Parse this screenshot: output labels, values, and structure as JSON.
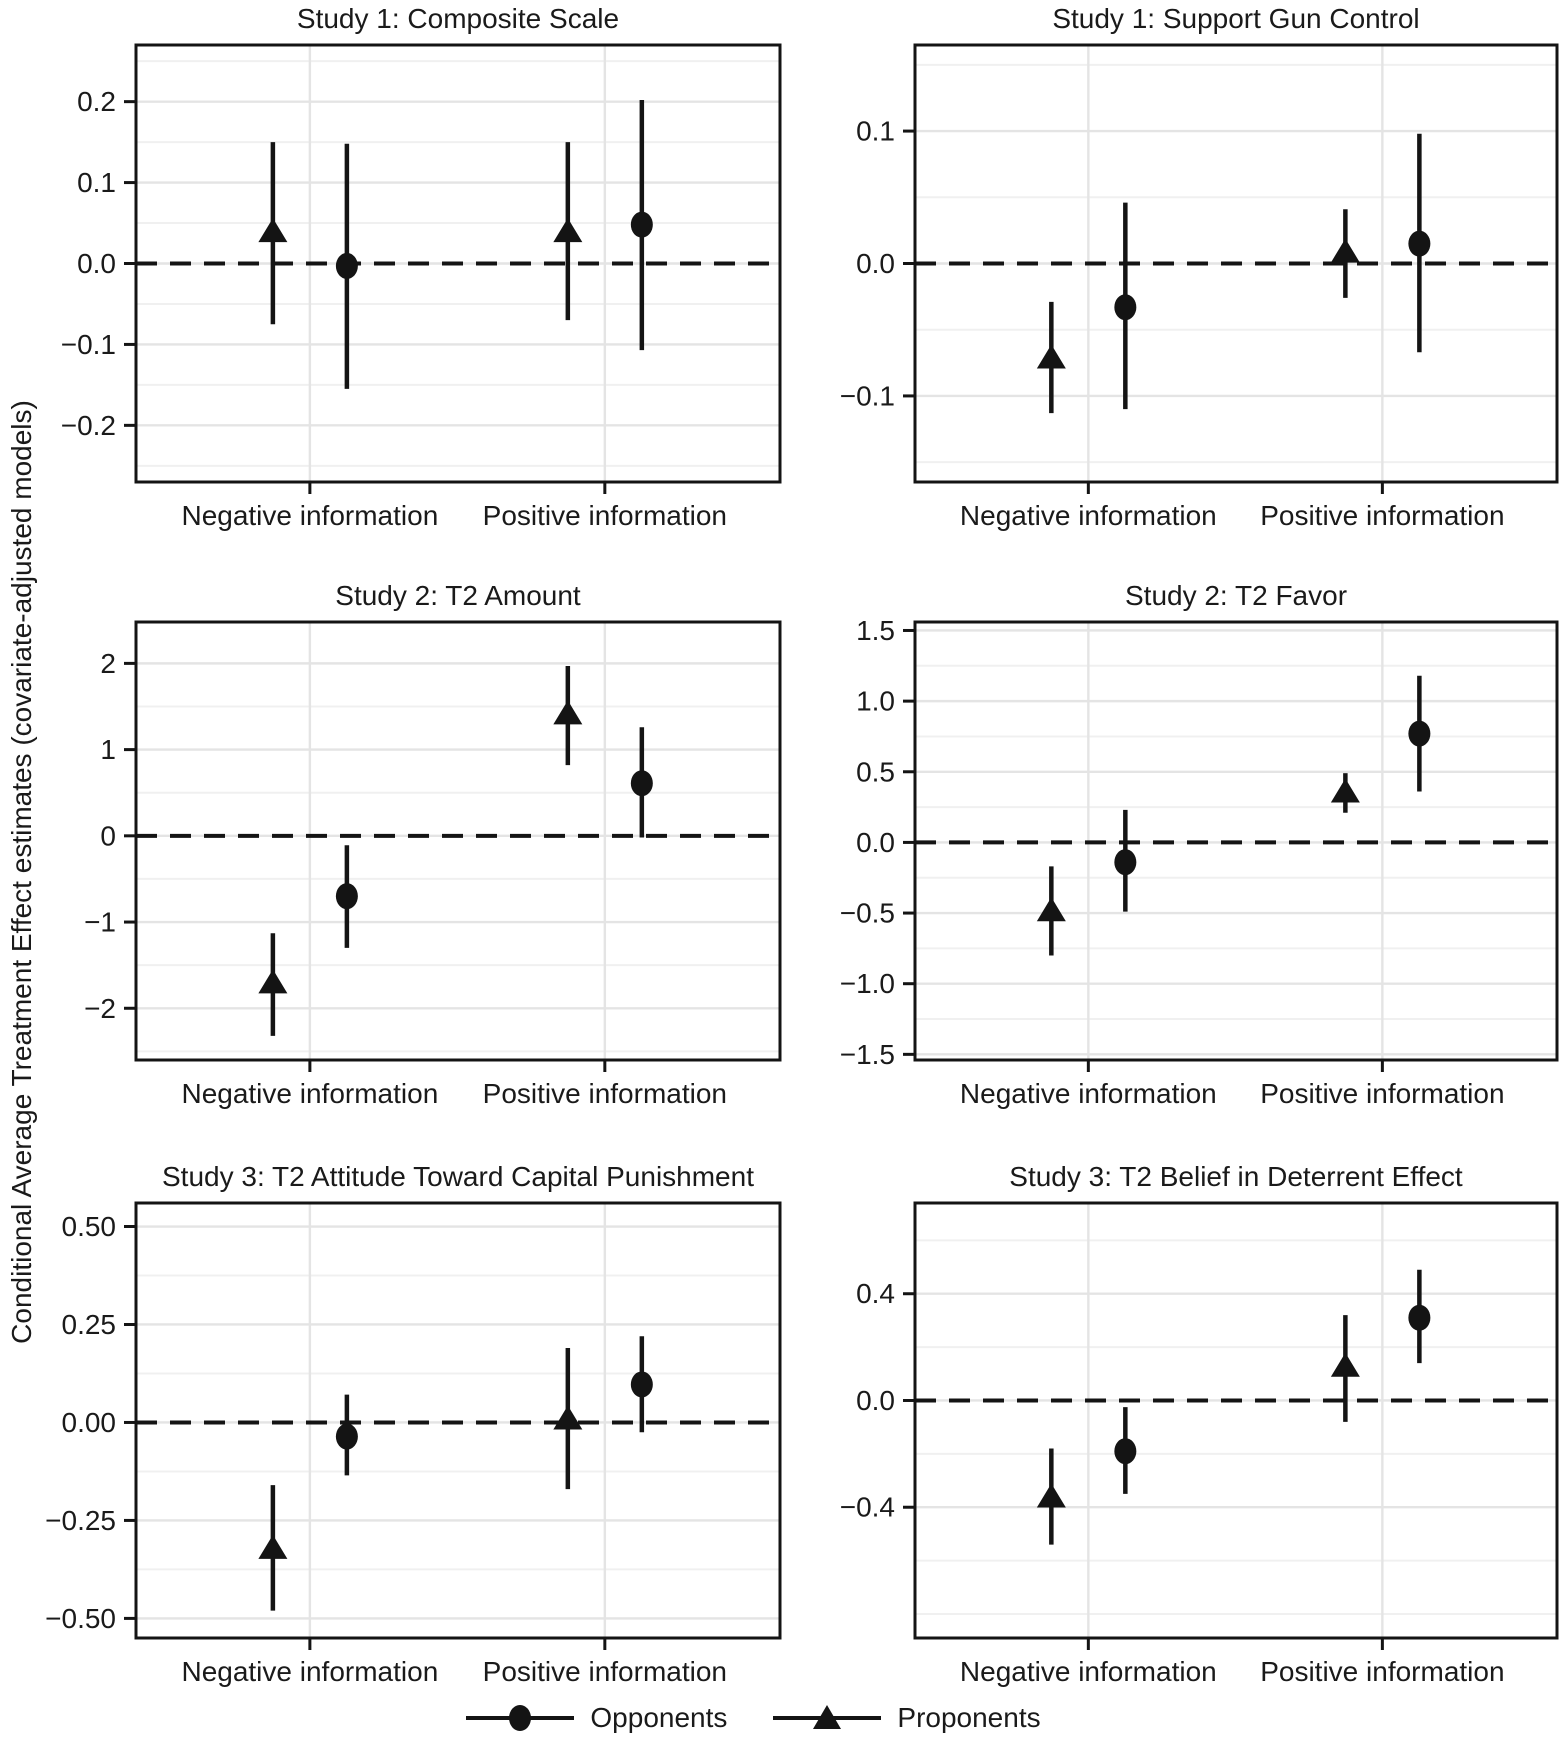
{
  "figure": {
    "y_axis_label": "Conditional Average Treatment Effect estimates (covariate-adjusted models)"
  },
  "colors": {
    "marker": "#141414",
    "border": "#141414",
    "zero_line": "#141414",
    "grid_major": "#e4e4e4",
    "grid_minor": "#f0f0f0",
    "background": "#ffffff",
    "text": "#1a1a1a"
  },
  "legend": {
    "items": [
      {
        "label": "Opponents",
        "marker": "circle"
      },
      {
        "label": "Proponents",
        "marker": "triangle"
      }
    ]
  },
  "chart_data": [
    {
      "type": "scatter",
      "title": "Study 1: Composite Scale",
      "categories": [
        "Negative information",
        "Positive information"
      ],
      "ylim": [
        -0.27,
        0.27
      ],
      "y_ticks": [
        "0.2",
        "0.1",
        "0.0",
        "−0.1",
        "−0.2"
      ],
      "y_tick_values": [
        0.2,
        0.1,
        0.0,
        -0.1,
        -0.2
      ],
      "minor_step": 0.05,
      "zero_line": true,
      "series": [
        {
          "name": "Proponents",
          "marker": "triangle",
          "points": [
            {
              "category": "Negative information",
              "y": 0.04,
              "lo": -0.075,
              "hi": 0.15
            },
            {
              "category": "Positive information",
              "y": 0.04,
              "lo": -0.07,
              "hi": 0.15
            }
          ]
        },
        {
          "name": "Opponents",
          "marker": "circle",
          "points": [
            {
              "category": "Negative information",
              "y": -0.003,
              "lo": -0.155,
              "hi": 0.148
            },
            {
              "category": "Positive information",
              "y": 0.048,
              "lo": -0.107,
              "hi": 0.202
            }
          ]
        }
      ]
    },
    {
      "type": "scatter",
      "title": "Study 1: Support Gun Control",
      "categories": [
        "Negative information",
        "Positive information"
      ],
      "ylim": [
        -0.165,
        0.165
      ],
      "y_ticks": [
        "0.1",
        "0.0",
        "−0.1"
      ],
      "y_tick_values": [
        0.1,
        0.0,
        -0.1
      ],
      "minor_step": 0.05,
      "zero_line": true,
      "series": [
        {
          "name": "Proponents",
          "marker": "triangle",
          "points": [
            {
              "category": "Negative information",
              "y": -0.071,
              "lo": -0.113,
              "hi": -0.029
            },
            {
              "category": "Positive information",
              "y": 0.009,
              "lo": -0.026,
              "hi": 0.041
            }
          ]
        },
        {
          "name": "Opponents",
          "marker": "circle",
          "points": [
            {
              "category": "Negative information",
              "y": -0.033,
              "lo": -0.11,
              "hi": 0.046
            },
            {
              "category": "Positive information",
              "y": 0.015,
              "lo": -0.067,
              "hi": 0.098
            }
          ]
        }
      ]
    },
    {
      "type": "scatter",
      "title": "Study 2: T2 Amount",
      "categories": [
        "Negative information",
        "Positive information"
      ],
      "ylim": [
        -2.6,
        2.48
      ],
      "y_ticks": [
        "2",
        "1",
        "0",
        "−1",
        "−2"
      ],
      "y_tick_values": [
        2,
        1,
        0,
        -1,
        -2
      ],
      "minor_step": 0.5,
      "zero_line": true,
      "series": [
        {
          "name": "Proponents",
          "marker": "triangle",
          "points": [
            {
              "category": "Negative information",
              "y": -1.7,
              "lo": -2.32,
              "hi": -1.13
            },
            {
              "category": "Positive information",
              "y": 1.42,
              "lo": 0.82,
              "hi": 1.97
            }
          ]
        },
        {
          "name": "Opponents",
          "marker": "circle",
          "points": [
            {
              "category": "Negative information",
              "y": -0.7,
              "lo": -1.3,
              "hi": -0.11
            },
            {
              "category": "Positive information",
              "y": 0.61,
              "lo": -0.02,
              "hi": 1.26
            }
          ]
        }
      ]
    },
    {
      "type": "scatter",
      "title": "Study 2: T2 Favor",
      "categories": [
        "Negative information",
        "Positive information"
      ],
      "ylim": [
        -1.54,
        1.56
      ],
      "y_ticks": [
        "1.5",
        "1.0",
        "0.5",
        "0.0",
        "−0.5",
        "−1.0",
        "−1.5"
      ],
      "y_tick_values": [
        1.5,
        1.0,
        0.5,
        0.0,
        -0.5,
        -1.0,
        -1.5
      ],
      "minor_step": 0.25,
      "zero_line": true,
      "series": [
        {
          "name": "Proponents",
          "marker": "triangle",
          "points": [
            {
              "category": "Negative information",
              "y": -0.48,
              "lo": -0.8,
              "hi": -0.17
            },
            {
              "category": "Positive information",
              "y": 0.36,
              "lo": 0.21,
              "hi": 0.49
            }
          ]
        },
        {
          "name": "Opponents",
          "marker": "circle",
          "points": [
            {
              "category": "Negative information",
              "y": -0.14,
              "lo": -0.49,
              "hi": 0.23
            },
            {
              "category": "Positive information",
              "y": 0.77,
              "lo": 0.36,
              "hi": 1.18
            }
          ]
        }
      ]
    },
    {
      "type": "scatter",
      "title": "Study 3: T2 Attitude Toward Capital Punishment",
      "categories": [
        "Negative information",
        "Positive information"
      ],
      "ylim": [
        -0.55,
        0.56
      ],
      "y_ticks": [
        "0.50",
        "0.25",
        "0.00",
        "−0.25",
        "−0.50"
      ],
      "y_tick_values": [
        0.5,
        0.25,
        0.0,
        -0.25,
        -0.5
      ],
      "minor_step": 0.125,
      "zero_line": true,
      "series": [
        {
          "name": "Proponents",
          "marker": "triangle",
          "points": [
            {
              "category": "Negative information",
              "y": -0.32,
              "lo": -0.48,
              "hi": -0.16
            },
            {
              "category": "Positive information",
              "y": 0.01,
              "lo": -0.17,
              "hi": 0.19
            }
          ]
        },
        {
          "name": "Opponents",
          "marker": "circle",
          "points": [
            {
              "category": "Negative information",
              "y": -0.036,
              "lo": -0.135,
              "hi": 0.071
            },
            {
              "category": "Positive information",
              "y": 0.097,
              "lo": -0.025,
              "hi": 0.22
            }
          ]
        }
      ]
    },
    {
      "type": "scatter",
      "title": "Study 3: T2 Belief in Deterrent Effect",
      "categories": [
        "Negative information",
        "Positive information"
      ],
      "ylim": [
        -0.89,
        0.74
      ],
      "y_ticks": [
        "0.4",
        "0.0",
        "−0.4"
      ],
      "y_tick_values": [
        0.4,
        0.0,
        -0.4
      ],
      "minor_step": 0.2,
      "zero_line": true,
      "series": [
        {
          "name": "Proponents",
          "marker": "triangle",
          "points": [
            {
              "category": "Negative information",
              "y": -0.36,
              "lo": -0.54,
              "hi": -0.18
            },
            {
              "category": "Positive information",
              "y": 0.13,
              "lo": -0.08,
              "hi": 0.32
            }
          ]
        },
        {
          "name": "Opponents",
          "marker": "circle",
          "points": [
            {
              "category": "Negative information",
              "y": -0.19,
              "lo": -0.35,
              "hi": -0.025
            },
            {
              "category": "Positive information",
              "y": 0.31,
              "lo": 0.14,
              "hi": 0.49
            }
          ]
        }
      ]
    }
  ]
}
